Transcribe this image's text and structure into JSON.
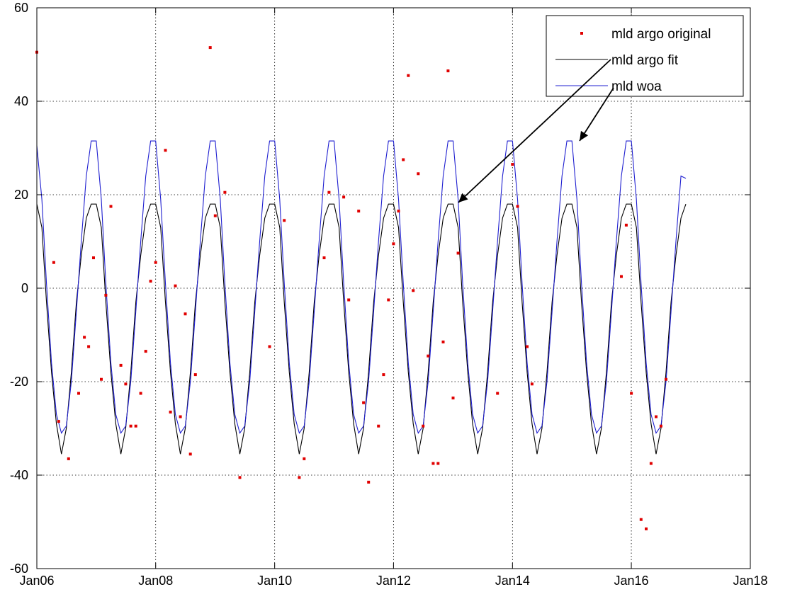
{
  "chart_data": {
    "type": "line",
    "title": "",
    "xlabel": "",
    "ylabel": "",
    "xlim": [
      "2006-01-01",
      "2018-01-01"
    ],
    "ylim": [
      -60,
      60
    ],
    "grid": true,
    "legend_position": "top-right",
    "x_tick_labels": [
      "Jan06",
      "Jan08",
      "Jan10",
      "Jan12",
      "Jan14",
      "Jan16",
      "Jan18"
    ],
    "y_tick_labels": [
      "60",
      "40",
      "20",
      "0",
      "-20",
      "-40",
      "-60"
    ],
    "y_ticks": [
      60,
      40,
      20,
      0,
      -20,
      -40,
      -60
    ],
    "series": [
      {
        "name": "mld argo original",
        "kind": "scatter",
        "color": "#e00000",
        "points": [
          [
            "2006-01-01",
            50.5
          ],
          [
            "2006-04-15",
            5.5
          ],
          [
            "2006-05-15",
            -28.5
          ],
          [
            "2006-07-15",
            -36.5
          ],
          [
            "2006-09-15",
            -22.5
          ],
          [
            "2006-10-20",
            -10.5
          ],
          [
            "2006-11-15",
            -12.5
          ],
          [
            "2006-12-15",
            6.5
          ],
          [
            "2007-02-01",
            -19.5
          ],
          [
            "2007-03-01",
            -1.5
          ],
          [
            "2007-04-01",
            17.5
          ],
          [
            "2007-06-01",
            -16.5
          ],
          [
            "2007-07-01",
            -20.5
          ],
          [
            "2007-08-01",
            -29.5
          ],
          [
            "2007-09-01",
            -29.5
          ],
          [
            "2007-10-01",
            -22.5
          ],
          [
            "2007-11-01",
            -13.5
          ],
          [
            "2007-12-01",
            1.5
          ],
          [
            "2008-01-01",
            5.5
          ],
          [
            "2008-03-01",
            29.5
          ],
          [
            "2008-04-01",
            -26.5
          ],
          [
            "2008-05-01",
            0.5
          ],
          [
            "2008-06-01",
            -27.5
          ],
          [
            "2008-07-01",
            -5.5
          ],
          [
            "2008-08-01",
            -35.5
          ],
          [
            "2008-09-01",
            -18.5
          ],
          [
            "2008-12-01",
            51.5
          ],
          [
            "2009-01-01",
            15.5
          ],
          [
            "2009-03-01",
            20.5
          ],
          [
            "2009-06-01",
            -40.5
          ],
          [
            "2009-12-01",
            -12.5
          ],
          [
            "2010-03-01",
            14.5
          ],
          [
            "2010-06-01",
            -40.5
          ],
          [
            "2010-07-01",
            -36.5
          ],
          [
            "2010-11-01",
            6.5
          ],
          [
            "2010-12-01",
            20.5
          ],
          [
            "2011-03-01",
            19.5
          ],
          [
            "2011-04-01",
            -2.5
          ],
          [
            "2011-06-01",
            16.5
          ],
          [
            "2011-07-01",
            -24.5
          ],
          [
            "2011-08-01",
            -41.5
          ],
          [
            "2011-10-01",
            -29.5
          ],
          [
            "2011-11-01",
            -18.5
          ],
          [
            "2011-12-01",
            -2.5
          ],
          [
            "2012-01-01",
            9.5
          ],
          [
            "2012-02-01",
            16.5
          ],
          [
            "2012-03-01",
            27.5
          ],
          [
            "2012-04-01",
            45.5
          ],
          [
            "2012-05-01",
            -0.5
          ],
          [
            "2012-06-01",
            24.5
          ],
          [
            "2012-07-01",
            -29.5
          ],
          [
            "2012-08-01",
            -14.5
          ],
          [
            "2012-09-01",
            -37.5
          ],
          [
            "2012-10-01",
            -37.5
          ],
          [
            "2012-11-01",
            -11.5
          ],
          [
            "2012-12-01",
            46.5
          ],
          [
            "2013-01-01",
            -23.5
          ],
          [
            "2013-02-01",
            7.5
          ],
          [
            "2013-10-01",
            -22.5
          ],
          [
            "2014-01-01",
            26.5
          ],
          [
            "2014-02-01",
            17.5
          ],
          [
            "2014-04-01",
            -12.5
          ],
          [
            "2014-05-01",
            -20.5
          ],
          [
            "2015-11-01",
            2.5
          ],
          [
            "2015-12-01",
            13.5
          ],
          [
            "2016-01-01",
            -22.5
          ],
          [
            "2016-03-01",
            -49.5
          ],
          [
            "2016-04-01",
            -51.5
          ],
          [
            "2016-05-01",
            -37.5
          ],
          [
            "2016-06-01",
            -27.5
          ],
          [
            "2016-07-01",
            -29.5
          ],
          [
            "2016-08-01",
            -19.5
          ]
        ]
      },
      {
        "name": "mld argo fit",
        "kind": "line",
        "color": "#000000",
        "x_start": "2006-01-01",
        "x_end": "2016-12-01",
        "monthly_cycle": [
          18,
          13,
          -3,
          -18,
          -29,
          -35.5,
          -30,
          -18,
          -3,
          7,
          15,
          18
        ]
      },
      {
        "name": "mld woa",
        "kind": "line",
        "color": "#1f1fd0",
        "x_start": "2006-01-01",
        "x_end": "2016-12-01",
        "monthly_cycle": [
          31.5,
          19,
          1,
          -16,
          -27,
          -31,
          -29.5,
          -20,
          -5,
          10,
          24,
          31.5
        ],
        "first_point_value": 30.5,
        "last_point_value": 23.5
      }
    ]
  }
}
